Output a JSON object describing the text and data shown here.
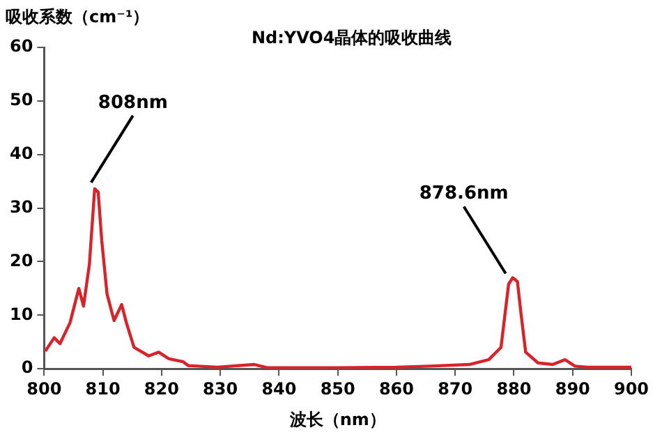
{
  "chart_data": {
    "type": "line",
    "title": "Nd:YVO4晶体的吸收曲线",
    "xlabel": "波长（nm）",
    "ylabel": "吸收系数（cm⁻¹）",
    "xlim": [
      800,
      900
    ],
    "xticks": [
      800,
      810,
      820,
      830,
      840,
      850,
      860,
      870,
      880,
      890,
      900
    ],
    "ylim": [
      0,
      60
    ],
    "yticks": [
      0,
      10,
      20,
      30,
      40,
      50,
      60
    ],
    "grid": false,
    "legend": false,
    "marker": "none",
    "line_style": "solid",
    "annotations": [
      {
        "text": "808nm",
        "x": 808,
        "y": 34
      },
      {
        "text": "878.6nm",
        "x": 878.6,
        "y": 17
      }
    ],
    "series": [
      {
        "color": "#d9232b",
        "x": [
          800.2,
          801.7,
          802.7,
          804.4,
          805.9,
          806.7,
          807.7,
          808.6,
          809.2,
          809.8,
          810.7,
          811.9,
          813.2,
          814,
          815.3,
          817.8,
          819.5,
          821.2,
          823.7,
          824.5,
          829.5,
          835.8,
          838,
          850,
          860,
          865.7,
          872.4,
          875.7,
          877.8,
          879.1,
          879.8,
          880.6,
          881.2,
          882,
          884.1,
          886.6,
          888.7,
          890.4,
          892.5,
          900
        ],
        "values": [
          3.3,
          5.8,
          4.7,
          8.6,
          15,
          11.7,
          19.5,
          33.6,
          33,
          24,
          14,
          9,
          12,
          8.6,
          4,
          2.4,
          3.1,
          1.9,
          1.3,
          0.6,
          0.3,
          0.8,
          0.2,
          0.2,
          0.3,
          0.5,
          0.8,
          1.7,
          4,
          15.8,
          17,
          16.3,
          10.4,
          3.1,
          1.1,
          0.8,
          1.7,
          0.5,
          0.3,
          0.3
        ]
      }
    ]
  }
}
